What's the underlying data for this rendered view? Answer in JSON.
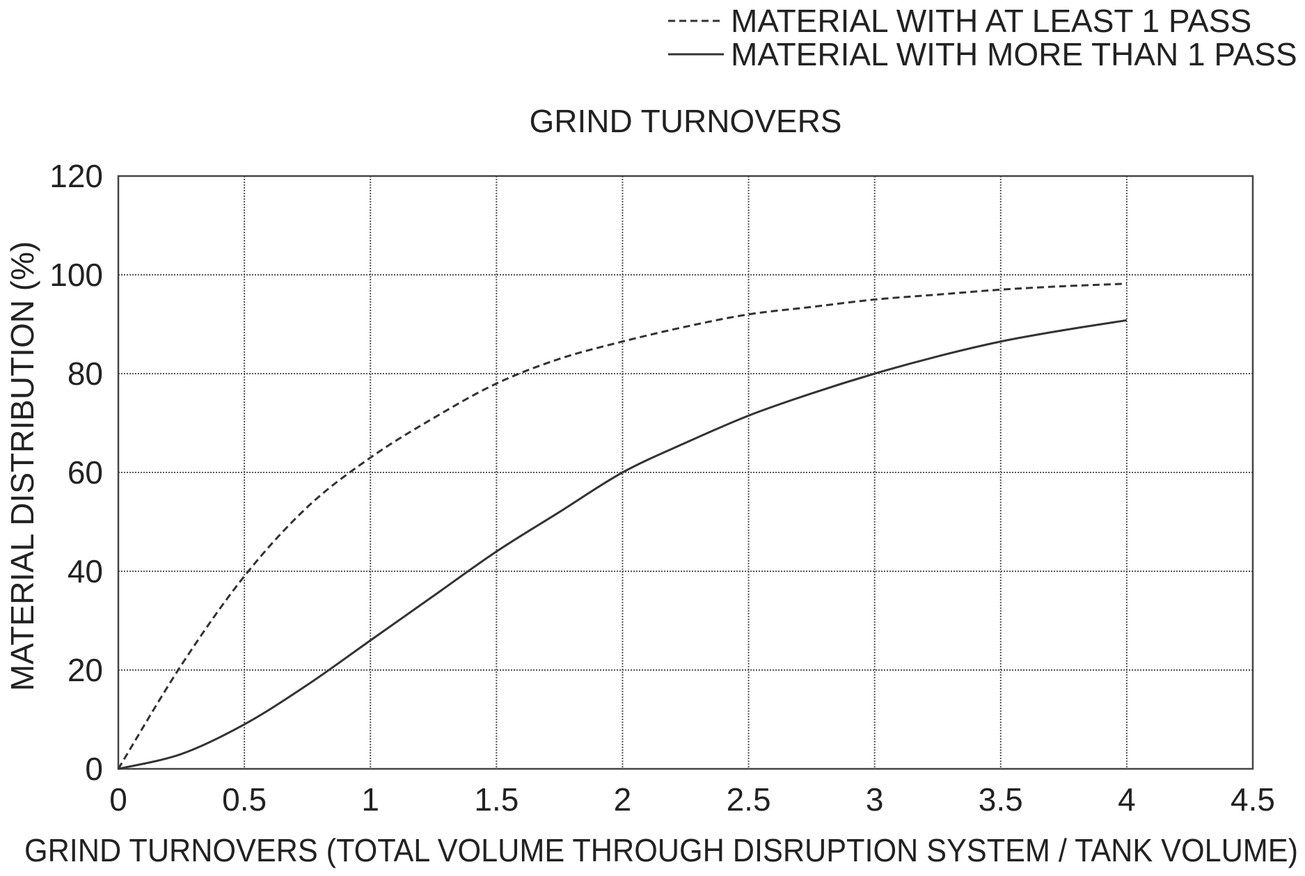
{
  "chart_data": {
    "type": "line",
    "title": "GRIND TURNOVERS",
    "xlabel": "GRIND TURNOVERS (TOTAL VOLUME THROUGH DISRUPTION SYSTEM / TANK VOLUME)",
    "ylabel": "MATERIAL DISTRIBUTION (%)",
    "xlim": [
      0,
      4.5
    ],
    "ylim": [
      0,
      120
    ],
    "xticks": [
      "0",
      "0.5",
      "1",
      "1.5",
      "2",
      "2.5",
      "3",
      "3.5",
      "4",
      "4.5"
    ],
    "yticks": [
      "0",
      "20",
      "40",
      "60",
      "80",
      "100",
      "120"
    ],
    "grid": true,
    "legend_position": "top-right, above plot",
    "series": [
      {
        "name": "MATERIAL WITH AT LEAST 1 PASS",
        "style": "dashed",
        "color": "#333333",
        "x": [
          0,
          0.25,
          0.5,
          0.75,
          1.0,
          1.25,
          1.5,
          1.75,
          2.0,
          2.25,
          2.5,
          2.75,
          3.0,
          3.25,
          3.5,
          3.75,
          4.0
        ],
        "y": [
          0,
          21,
          39,
          53,
          63,
          71,
          78,
          83,
          86.5,
          89.5,
          92,
          93.5,
          95,
          96,
          97,
          97.7,
          98.2
        ]
      },
      {
        "name": "MATERIAL WITH MORE THAN 1 PASS",
        "style": "solid",
        "color": "#333333",
        "x": [
          0,
          0.25,
          0.5,
          0.75,
          1.0,
          1.25,
          1.5,
          1.75,
          2.0,
          2.25,
          2.5,
          2.75,
          3.0,
          3.25,
          3.5,
          3.75,
          4.0
        ],
        "y": [
          0,
          3,
          9,
          17,
          26,
          35,
          44,
          52,
          60,
          66,
          71.5,
          76,
          80,
          83.5,
          86.5,
          88.8,
          90.8
        ]
      }
    ]
  }
}
